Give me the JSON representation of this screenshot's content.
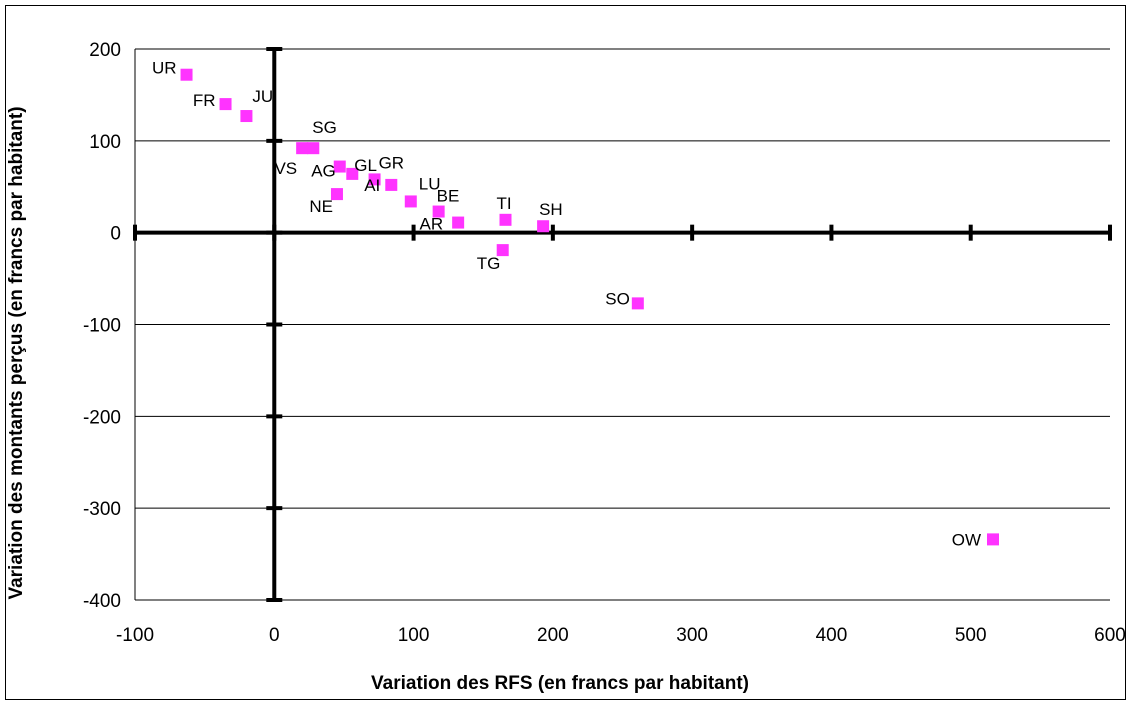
{
  "chart_data": {
    "type": "scatter",
    "title": "",
    "xlabel": "Variation des RFS (en francs par habitant)",
    "ylabel": "Variation des montants perçus (en francs par habitant)",
    "xlim": [
      -100,
      600
    ],
    "ylim": [
      -400,
      200
    ],
    "x_ticks": [
      -100,
      0,
      100,
      200,
      300,
      400,
      500,
      600
    ],
    "y_ticks": [
      -400,
      -300,
      -200,
      -100,
      0,
      100,
      200
    ],
    "grid": "horizontal",
    "legend": "none",
    "marker_color": "#FF33FF",
    "points": [
      {
        "label": "UR",
        "x": -63,
        "y": 172
      },
      {
        "label": "FR",
        "x": -35,
        "y": 140
      },
      {
        "label": "JU",
        "x": -20,
        "y": 127
      },
      {
        "label": "VS",
        "x": 20,
        "y": 92
      },
      {
        "label": "SG",
        "x": 28,
        "y": 92
      },
      {
        "label": "AG",
        "x": 47,
        "y": 72
      },
      {
        "label": "GL",
        "x": 56,
        "y": 64
      },
      {
        "label": "NE",
        "x": 45,
        "y": 42
      },
      {
        "label": "GR",
        "x": 72,
        "y": 58
      },
      {
        "label": "AI",
        "x": 84,
        "y": 52
      },
      {
        "label": "LU",
        "x": 98,
        "y": 34
      },
      {
        "label": "BE",
        "x": 118,
        "y": 23
      },
      {
        "label": "AR",
        "x": 132,
        "y": 11
      },
      {
        "label": "TI",
        "x": 166,
        "y": 14
      },
      {
        "label": "SH",
        "x": 193,
        "y": 7
      },
      {
        "label": "TG",
        "x": 164,
        "y": -19
      },
      {
        "label": "SO",
        "x": 261,
        "y": -77
      },
      {
        "label": "OW",
        "x": 516,
        "y": -334
      }
    ]
  }
}
